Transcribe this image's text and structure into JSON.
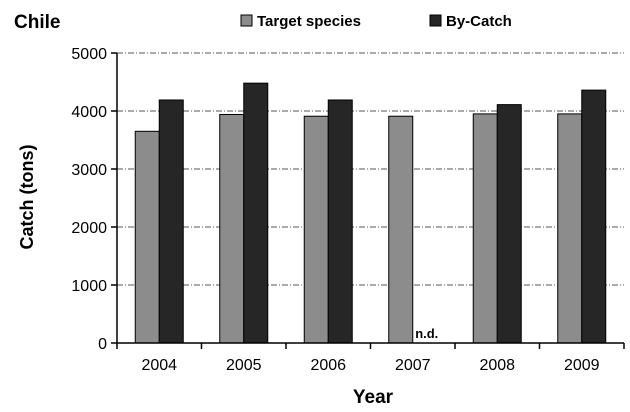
{
  "chart_data": {
    "type": "bar",
    "title": "Chile",
    "xlabel": "Year",
    "ylabel": "Catch (tons)",
    "categories": [
      "2004",
      "2005",
      "2006",
      "2007",
      "2008",
      "2009"
    ],
    "series": [
      {
        "name": "Target species",
        "color": "#8c8c8c",
        "values": [
          3650,
          3940,
          3910,
          3910,
          3950,
          3950
        ]
      },
      {
        "name": "By-Catch",
        "color": "#262626",
        "values": [
          4190,
          4480,
          4190,
          null,
          4110,
          4360
        ]
      }
    ],
    "ylim": [
      0,
      5000
    ],
    "yticks": [
      0,
      1000,
      2000,
      3000,
      4000,
      5000
    ],
    "grid": "horizontal dash-dot",
    "legend_position": "top",
    "annotations": [
      {
        "category": "2007",
        "series": "By-Catch",
        "text": "n.d."
      }
    ]
  }
}
